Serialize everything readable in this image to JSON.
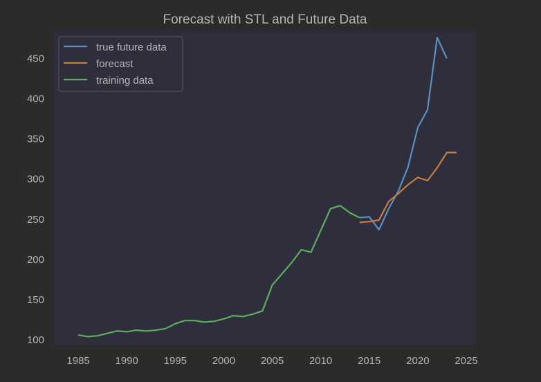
{
  "chart_data": {
    "type": "line",
    "title": "Forecast with STL and Future Data",
    "xlabel": "",
    "ylabel": "",
    "xlim": [
      1982.5,
      2026.0
    ],
    "ylim": [
      94,
      484
    ],
    "xticks": [
      1985,
      1990,
      1995,
      2000,
      2005,
      2010,
      2015,
      2020,
      2025
    ],
    "yticks": [
      100,
      150,
      200,
      250,
      300,
      350,
      400,
      450
    ],
    "grid": false,
    "legend_position": "top-left",
    "series": [
      {
        "name": "true future data",
        "color": "#5a8fc0",
        "x": [
          2014,
          2015,
          2016,
          2017,
          2018,
          2019,
          2020,
          2021,
          2022,
          2023
        ],
        "y": [
          252,
          253,
          237,
          263,
          285,
          315,
          364,
          386,
          476,
          450
        ]
      },
      {
        "name": "forecast",
        "color": "#c97d3e",
        "x": [
          2014,
          2015,
          2016,
          2017,
          2018,
          2019,
          2020,
          2021,
          2022,
          2023,
          2024
        ],
        "y": [
          246,
          247,
          249,
          272,
          282,
          293,
          302,
          298,
          314,
          333,
          333
        ]
      },
      {
        "name": "training data",
        "color": "#5fae5e",
        "x": [
          1985,
          1986,
          1987,
          1988,
          1989,
          1990,
          1991,
          1992,
          1993,
          1994,
          1995,
          1996,
          1997,
          1998,
          1999,
          2000,
          2001,
          2002,
          2003,
          2004,
          2005,
          2006,
          2007,
          2008,
          2009,
          2010,
          2011,
          2012,
          2013,
          2014
        ],
        "y": [
          106,
          104,
          105,
          108,
          111,
          110,
          112,
          111,
          112,
          114,
          120,
          124,
          124,
          122,
          123,
          126,
          130,
          129,
          132,
          136,
          168,
          182,
          196,
          212,
          209,
          236,
          263,
          267,
          258,
          252
        ]
      }
    ]
  },
  "colors": {
    "figure_bg": "#2b2b2b",
    "axes_bg": "#2f2e3c",
    "text": "#b5b5b5",
    "legend_edge": "#55556a"
  }
}
